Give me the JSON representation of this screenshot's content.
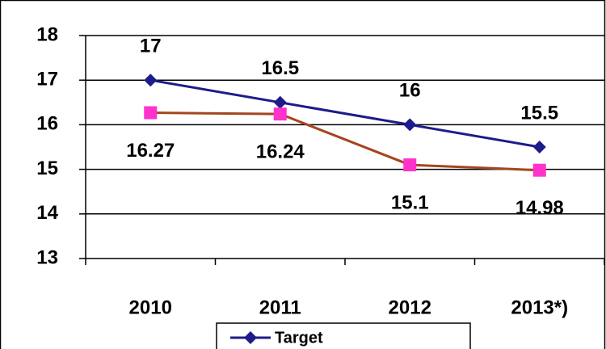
{
  "chart_data": {
    "type": "line",
    "categories": [
      "2010",
      "2011",
      "2012",
      "2013*)"
    ],
    "series": [
      {
        "name": "Target",
        "color": "#1c1c8a",
        "marker": "diamond",
        "marker_color": "#1c1c8a",
        "values": [
          17,
          16.5,
          16,
          15.5
        ]
      },
      {
        "color": "#a3461f",
        "marker": "square",
        "marker_color": "#ff33cc",
        "values": [
          16.27,
          16.24,
          15.1,
          14.98
        ]
      }
    ],
    "ylim": [
      13,
      18
    ],
    "yticks": [
      13,
      14,
      15,
      16,
      17,
      18
    ],
    "grid": true,
    "legend": "bottom"
  }
}
